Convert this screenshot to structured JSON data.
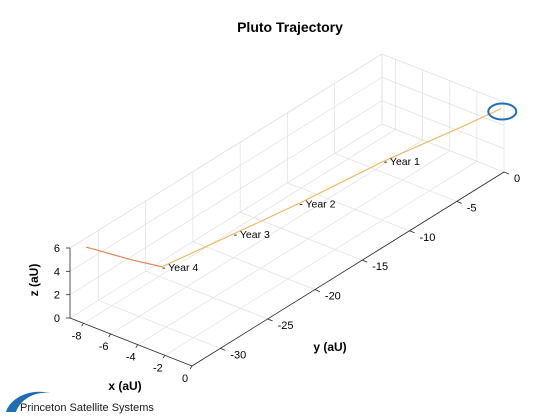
{
  "chart_data": {
    "type": "line",
    "title": "Pluto Trajectory",
    "xlabel": "x (aU)",
    "ylabel": "y (aU)",
    "zlabel": "z (aU)",
    "xlim": [
      -9,
      0
    ],
    "ylim": [
      -33,
      0
    ],
    "zlim": [
      0,
      6
    ],
    "x_ticks": [
      -8,
      -6,
      -4,
      -2,
      0
    ],
    "y_ticks": [
      -30,
      -25,
      -20,
      -15,
      -10,
      -5,
      0
    ],
    "z_ticks": [
      0,
      2,
      4,
      6
    ],
    "grid": true,
    "series": [
      {
        "color": "#f0b35a",
        "points": [
          {
            "x": -0.2,
            "y": 0.0,
            "z": 5.35
          },
          {
            "x": -0.7,
            "y": -3.5,
            "z": 5.3
          },
          {
            "x": -1.9,
            "y": -10.0,
            "z": 5.1
          },
          {
            "x": -2.9,
            "y": -17.5,
            "z": 4.8
          },
          {
            "x": -3.9,
            "y": -23.0,
            "z": 4.5
          },
          {
            "x": -5.0,
            "y": -29.0,
            "z": 4.2
          },
          {
            "x": -6.5,
            "y": -30.0,
            "z": 4.6
          },
          {
            "x": -8.5,
            "y": -32.0,
            "z": 5.8
          }
        ]
      }
    ],
    "annotations": [
      {
        "text": "- Year 1",
        "x": -1.9,
        "y": -10.0,
        "z": 5.1
      },
      {
        "text": "- Year 2",
        "x": -2.9,
        "y": -17.5,
        "z": 4.8
      },
      {
        "text": "- Year 3",
        "x": -3.9,
        "y": -23.0,
        "z": 4.5
      },
      {
        "text": "- Year 4",
        "x": -5.0,
        "y": -29.0,
        "z": 4.2
      }
    ],
    "marker": {
      "shape": "ellipse",
      "color": "#1f6fb5",
      "x": -0.2,
      "y": 0.0,
      "z": 5.35
    }
  },
  "logo": {
    "text": "Princeton Satellite Systems",
    "color": "#1f6fb5"
  }
}
